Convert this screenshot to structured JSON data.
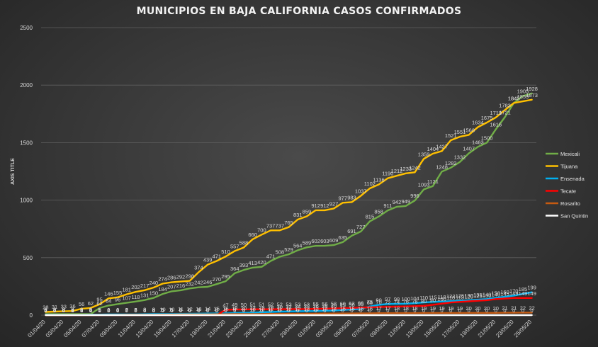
{
  "chart_data": {
    "type": "line",
    "title": "MUNICIPIOS EN BAJA CALIFORNIA CASOS CONFIRMADOS",
    "ylabel": "AXIS TITLE",
    "xlabel": "",
    "ylim": [
      0,
      2500
    ],
    "yticks": [
      0,
      500,
      1000,
      1500,
      2000,
      2500
    ],
    "grid": true,
    "legend_position": "right",
    "x": [
      "01/04/20",
      "02/04/20",
      "03/04/20",
      "04/04/20",
      "05/04/20",
      "06/04/20",
      "07/04/20",
      "08/04/20",
      "09/04/20",
      "10/04/20",
      "11/04/20",
      "12/04/20",
      "13/04/20",
      "14/04/20",
      "15/04/20",
      "16/04/20",
      "17/04/20",
      "18/04/20",
      "19/04/20",
      "20/04/20",
      "21/04/20",
      "22/04/20",
      "23/04/20",
      "24/04/20",
      "25/04/20",
      "26/04/20",
      "27/04/20",
      "28/04/20",
      "29/04/20",
      "30/04/20",
      "01/05/20",
      "02/05/20",
      "03/05/20",
      "04/05/20",
      "05/05/20",
      "06/05/20",
      "07/05/20",
      "08/05/20",
      "09/05/20",
      "10/05/20",
      "11/05/20",
      "12/05/20",
      "13/05/20",
      "14/05/20",
      "15/05/20",
      "16/05/20",
      "17/05/20",
      "18/05/20",
      "19/05/20",
      "20/05/20",
      "21/05/20",
      "22/05/20",
      "23/05/20",
      "24/05/20",
      "25/05/20"
    ],
    "xtick_labels": [
      "01/04/20",
      "03/04/20",
      "05/04/20",
      "07/04/20",
      "09/04/20",
      "11/04/20",
      "13/04/20",
      "15/04/20",
      "17/04/20",
      "19/04/20",
      "21/04/20",
      "23/04/20",
      "25/04/20",
      "27/04/20",
      "29/04/20",
      "01/05/20",
      "03/05/20",
      "05/05/20",
      "07/05/20",
      "09/05/20",
      "11/05/20",
      "13/05/20",
      "15/05/20",
      "17/05/20",
      "19/05/20",
      "21/05/20",
      "23/05/20",
      "25/05/20"
    ],
    "series": [
      {
        "name": "Mexicali",
        "color": "#70ad47",
        "values": [
          9,
          9,
          9,
          9,
          9,
          9,
          62,
          84,
          96,
          107,
          118,
          131,
          150,
          184,
          207,
          216,
          232,
          242,
          246,
          270,
          295,
          364,
          393,
          413,
          420,
          471,
          508,
          529,
          564,
          589,
          602,
          603,
          609,
          635,
          691,
          727,
          815,
          858,
          911,
          942,
          949,
          996,
          1093,
          1121,
          1248,
          1282,
          1332,
          1407,
          1463,
          1500,
          1616,
          1721,
          1845,
          1905,
          1928
        ]
      },
      {
        "name": "Tijuana",
        "color": "#ffc000",
        "values": [
          28,
          31,
          33,
          36,
          56,
          62,
          95,
          146,
          155,
          181,
          202,
          217,
          240,
          274,
          286,
          292,
          298,
          374,
          439,
          471,
          510,
          557,
          588,
          660,
          700,
          737,
          737,
          765,
          831,
          859,
          912,
          912,
          927,
          977,
          983,
          1037,
          1102,
          1136,
          1190,
          1212,
          1233,
          1242,
          1359,
          1404,
          1427,
          1521,
          1551,
          1568,
          1634,
          1675,
          1719,
          1783,
          1845,
          1859,
          1873
        ]
      },
      {
        "name": "Ensenada",
        "color": "#00b0f0",
        "values": [
          3,
          3,
          4,
          4,
          4,
          5,
          5,
          6,
          6,
          7,
          7,
          8,
          9,
          10,
          10,
          11,
          12,
          13,
          14,
          15,
          16,
          18,
          20,
          22,
          25,
          28,
          30,
          32,
          34,
          35,
          36,
          38,
          40,
          45,
          50,
          55,
          75,
          90,
          97,
          98,
          100,
          104,
          110,
          115,
          118,
          122,
          125,
          130,
          135,
          140,
          150,
          160,
          170,
          185,
          199
        ]
      },
      {
        "name": "Tecate",
        "color": "#ff0000",
        "values": [
          0,
          0,
          0,
          0,
          0,
          0,
          0,
          0,
          0,
          0,
          0,
          0,
          0,
          0,
          0,
          0,
          0,
          0,
          0,
          0,
          47,
          49,
          50,
          51,
          51,
          52,
          52,
          53,
          53,
          53,
          55,
          56,
          58,
          60,
          62,
          66,
          68,
          70,
          72,
          74,
          76,
          78,
          80,
          90,
          100,
          110,
          115,
          120,
          125,
          130,
          140,
          145,
          149,
          149,
          149
        ]
      },
      {
        "name": "Rosarito",
        "color": "#c55a11",
        "values": [
          0,
          0,
          0,
          1,
          1,
          1,
          1,
          2,
          2,
          3,
          3,
          4,
          4,
          5,
          5,
          6,
          6,
          7,
          7,
          8,
          8,
          9,
          9,
          10,
          10,
          11,
          11,
          12,
          12,
          13,
          13,
          14,
          14,
          15,
          15,
          16,
          16,
          17,
          17,
          18,
          18,
          18,
          19,
          19,
          19,
          19,
          19,
          20,
          20,
          20,
          20,
          21,
          21,
          22,
          22
        ]
      },
      {
        "name": "San Quintin",
        "color": "#ffffff",
        "values": [
          0,
          0,
          0,
          0,
          0,
          0,
          0,
          0,
          0,
          0,
          0,
          0,
          0,
          0,
          0,
          0,
          0,
          0,
          0,
          0,
          0,
          0,
          0,
          0,
          0,
          0,
          0,
          0,
          0,
          0,
          0,
          0,
          0,
          0,
          0,
          0,
          0,
          0,
          0,
          0,
          0,
          0,
          0,
          0,
          0,
          0,
          0,
          0,
          0,
          0,
          0,
          0,
          0,
          0,
          0
        ]
      }
    ]
  }
}
